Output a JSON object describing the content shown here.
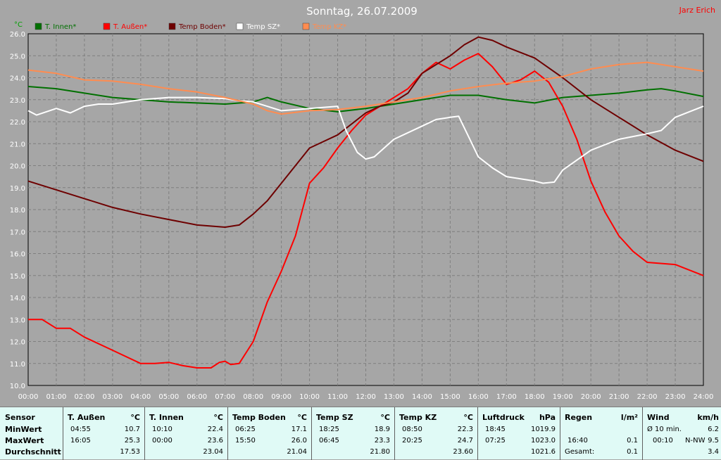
{
  "header": {
    "date_title": "Sonntag, 26.07.2009",
    "author": "Jarz Erich",
    "unit_label": "°C"
  },
  "colors": {
    "background": "#a6a6a6",
    "plot_bg": "#a6a6a6",
    "grid": "#7f7f7f",
    "t_innen": "#007000",
    "t_aussen": "#ff0000",
    "temp_boden": "#6e0000",
    "temp_sz": "#ffffff",
    "temp_kz": "#ff8c50"
  },
  "chart_data": {
    "type": "line",
    "title": "Sonntag, 26.07.2009",
    "ylabel": "°C",
    "ylim": [
      10,
      26
    ],
    "yticks": [
      "10.0",
      "11.0",
      "12.0",
      "13.0",
      "14.0",
      "15.0",
      "16.0",
      "17.0",
      "18.0",
      "19.0",
      "20.0",
      "21.0",
      "22.0",
      "23.0",
      "24.0",
      "25.0",
      "26.0"
    ],
    "xticks": [
      "00:00",
      "01:00",
      "02:00",
      "03:00",
      "04:00",
      "05:00",
      "06:00",
      "07:00",
      "08:00",
      "09:00",
      "10:00",
      "11:00",
      "12:00",
      "13:00",
      "14:00",
      "15:00",
      "16:00",
      "17:00",
      "18:00",
      "19:00",
      "20:00",
      "21:00",
      "22:00",
      "23:00",
      "24:00"
    ],
    "xlim": [
      0,
      24
    ],
    "grid": true,
    "legend_position": "top",
    "series": [
      {
        "name": "T. Innen*",
        "color": "#007000",
        "x": [
          0,
          1,
          2,
          3,
          4,
          5,
          6,
          7,
          8,
          8.5,
          9,
          10,
          11,
          12,
          13,
          14,
          15,
          16,
          17,
          18,
          19,
          20,
          21,
          22,
          22.5,
          23,
          24
        ],
        "y": [
          23.6,
          23.5,
          23.3,
          23.1,
          23.0,
          22.9,
          22.85,
          22.8,
          22.9,
          23.1,
          22.9,
          22.6,
          22.45,
          22.6,
          22.8,
          23.0,
          23.2,
          23.2,
          23.0,
          22.85,
          23.1,
          23.2,
          23.3,
          23.45,
          23.5,
          23.4,
          23.15
        ]
      },
      {
        "name": "T. Außen*",
        "color": "#ff0000",
        "x": [
          0,
          0.5,
          1,
          1.5,
          2,
          3,
          4,
          4.5,
          5,
          5.5,
          6,
          6.5,
          6.8,
          7,
          7.2,
          7.5,
          8,
          8.5,
          9,
          9.5,
          10,
          10.5,
          11,
          11.5,
          12,
          12.5,
          13,
          13.5,
          14,
          14.5,
          15,
          15.5,
          16,
          16.5,
          17,
          17.5,
          18,
          18.5,
          19,
          19.5,
          20,
          20.5,
          21,
          21.5,
          22,
          23,
          24
        ],
        "y": [
          13.0,
          13.0,
          12.6,
          12.6,
          12.2,
          11.6,
          11.0,
          11.0,
          11.05,
          10.9,
          10.8,
          10.8,
          11.05,
          11.1,
          10.95,
          11.0,
          12.0,
          13.8,
          15.2,
          16.8,
          19.2,
          19.9,
          20.8,
          21.6,
          22.3,
          22.7,
          23.1,
          23.5,
          24.2,
          24.7,
          24.4,
          24.8,
          25.1,
          24.5,
          23.7,
          23.9,
          24.3,
          23.8,
          22.7,
          21.2,
          19.3,
          17.9,
          16.8,
          16.1,
          15.6,
          15.5,
          15.0
        ]
      },
      {
        "name": "Temp Boden*",
        "color": "#6e0000",
        "x": [
          0,
          1,
          2,
          3,
          4,
          5,
          6,
          7,
          7.5,
          8,
          8.5,
          9,
          9.5,
          10,
          10.5,
          11,
          12,
          12.5,
          13,
          13.5,
          14,
          15,
          15.5,
          16,
          16.5,
          17,
          18,
          19,
          20,
          21,
          22,
          23,
          24
        ],
        "y": [
          19.3,
          18.9,
          18.5,
          18.1,
          17.8,
          17.55,
          17.3,
          17.2,
          17.3,
          17.8,
          18.4,
          19.2,
          20.0,
          20.8,
          21.1,
          21.4,
          22.4,
          22.7,
          22.9,
          23.3,
          24.2,
          25.0,
          25.5,
          25.85,
          25.7,
          25.4,
          24.9,
          24.0,
          23.0,
          22.2,
          21.4,
          20.7,
          20.2
        ]
      },
      {
        "name": "Temp SZ*",
        "color": "#ffffff",
        "x": [
          0,
          0.3,
          1,
          1.5,
          2,
          2.5,
          3,
          4,
          5,
          6,
          7,
          7.5,
          8,
          9,
          10,
          11,
          11.3,
          11.7,
          12,
          12.3,
          13,
          14,
          14.5,
          15,
          15.3,
          15.7,
          16,
          16.5,
          17,
          18,
          18.3,
          18.7,
          19,
          20,
          21,
          22,
          22.5,
          23,
          24
        ],
        "y": [
          22.5,
          22.3,
          22.6,
          22.4,
          22.7,
          22.8,
          22.8,
          23.0,
          23.1,
          23.1,
          23.05,
          22.95,
          22.9,
          22.5,
          22.6,
          22.7,
          21.6,
          20.6,
          20.3,
          20.4,
          21.2,
          21.8,
          22.1,
          22.2,
          22.25,
          21.2,
          20.4,
          19.9,
          19.5,
          19.3,
          19.2,
          19.25,
          19.8,
          20.7,
          21.2,
          21.45,
          21.6,
          22.2,
          22.7
        ]
      },
      {
        "name": "Temp KZ*",
        "color": "#ff8c50",
        "x": [
          0,
          1,
          2,
          3,
          4,
          5,
          6,
          7,
          8,
          8.5,
          9,
          10,
          11,
          12,
          13,
          14,
          15,
          16,
          17,
          18,
          19,
          20,
          21,
          22,
          23,
          24
        ],
        "y": [
          24.35,
          24.2,
          23.9,
          23.85,
          23.7,
          23.5,
          23.35,
          23.1,
          22.8,
          22.5,
          22.35,
          22.5,
          22.55,
          22.7,
          22.9,
          23.1,
          23.4,
          23.6,
          23.75,
          23.85,
          24.05,
          24.4,
          24.6,
          24.7,
          24.5,
          24.3
        ]
      }
    ]
  },
  "stats": {
    "sensor": {
      "header": "Sensor",
      "rows": [
        "MinWert",
        "MaxWert",
        "Durchschnitt"
      ]
    },
    "columns": [
      {
        "name": "T. Außen",
        "unit": "°C",
        "min_time": "04:55",
        "min": "10.7",
        "max_time": "16:05",
        "max": "25.3",
        "avg": "17.53"
      },
      {
        "name": "T. Innen",
        "unit": "°C",
        "min_time": "10:10",
        "min": "22.4",
        "max_time": "00:00",
        "max": "23.6",
        "avg": "23.04"
      },
      {
        "name": "Temp Boden",
        "unit": "°C",
        "min_time": "06:25",
        "min": "17.1",
        "max_time": "15:50",
        "max": "26.0",
        "avg": "21.04"
      },
      {
        "name": "Temp SZ",
        "unit": "°C",
        "min_time": "18:25",
        "min": "18.9",
        "max_time": "06:45",
        "max": "23.3",
        "avg": "21.80"
      },
      {
        "name": "Temp KZ",
        "unit": "°C",
        "min_time": "08:50",
        "min": "22.3",
        "max_time": "20:25",
        "max": "24.7",
        "avg": "23.60"
      },
      {
        "name": "Luftdruck",
        "unit": "hPa",
        "min_time": "18:45",
        "min": "1019.9",
        "max_time": "07:25",
        "max": "1023.0",
        "avg": "1021.6"
      }
    ],
    "regen": {
      "name": "Regen",
      "unit": "l/m²",
      "max_time": "16:40",
      "max": "0.1",
      "total_label": "Gesamt:",
      "total": "0.1"
    },
    "wind": {
      "name": "Wind",
      "unit": "km/h",
      "avg_label": "Ø 10 min.",
      "avg": "6.2",
      "max_time": "00:10",
      "max_dir": "N-NW",
      "max": "9.5",
      "last": "3.4"
    }
  }
}
